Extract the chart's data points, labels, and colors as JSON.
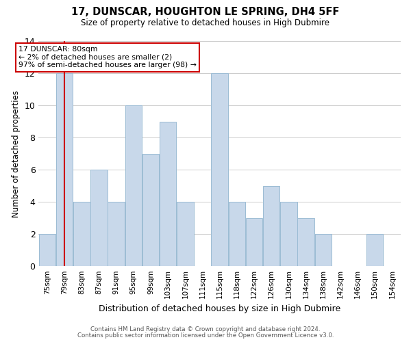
{
  "title": "17, DUNSCAR, HOUGHTON LE SPRING, DH4 5FF",
  "subtitle": "Size of property relative to detached houses in High Dubmire",
  "xlabel": "Distribution of detached houses by size in High Dubmire",
  "ylabel": "Number of detached properties",
  "bar_color": "#c8d8ea",
  "bar_edgecolor": "#9bbcd4",
  "bins": [
    "75sqm",
    "79sqm",
    "83sqm",
    "87sqm",
    "91sqm",
    "95sqm",
    "99sqm",
    "103sqm",
    "107sqm",
    "111sqm",
    "115sqm",
    "118sqm",
    "122sqm",
    "126sqm",
    "130sqm",
    "134sqm",
    "138sqm",
    "142sqm",
    "146sqm",
    "150sqm",
    "154sqm"
  ],
  "values": [
    2,
    12,
    4,
    6,
    4,
    10,
    7,
    9,
    4,
    0,
    12,
    4,
    3,
    5,
    4,
    3,
    2,
    0,
    0,
    2,
    0
  ],
  "ylim": [
    0,
    14
  ],
  "yticks": [
    0,
    2,
    4,
    6,
    8,
    10,
    12,
    14
  ],
  "annotation_line1": "17 DUNSCAR: 80sqm",
  "annotation_line2": "← 2% of detached houses are smaller (2)",
  "annotation_line3": "97% of semi-detached houses are larger (98) →",
  "vline_color": "#cc0000",
  "box_edgecolor": "#cc0000",
  "footer1": "Contains HM Land Registry data © Crown copyright and database right 2024.",
  "footer2": "Contains public sector information licensed under the Open Government Licence v3.0.",
  "background_color": "#ffffff",
  "grid_color": "#cccccc"
}
